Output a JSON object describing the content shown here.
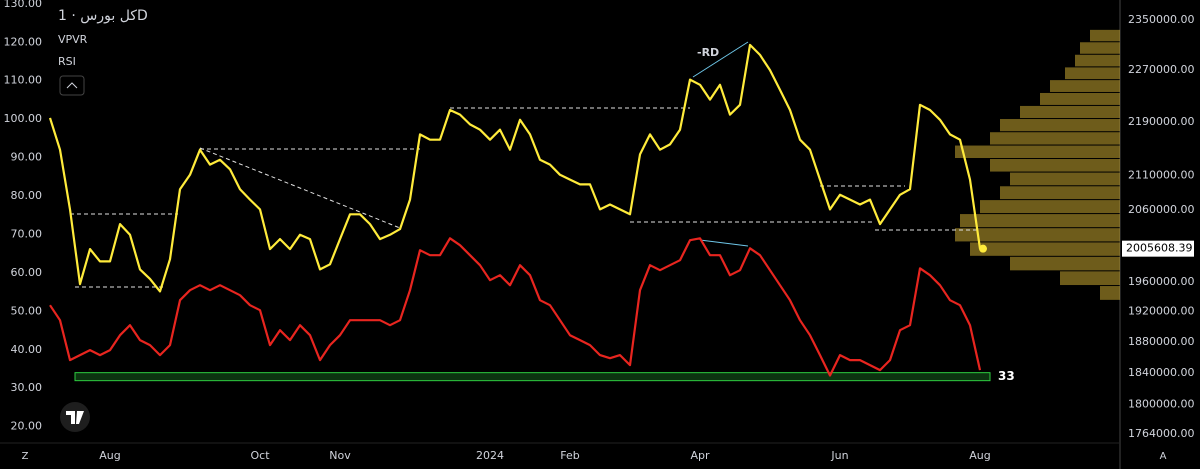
{
  "chart_data": {
    "type": "line",
    "title": "کل بورس · 1D",
    "annotation": "-RD",
    "corner_labels": [
      "Z",
      "A"
    ],
    "categories": [
      null,
      null,
      null,
      null,
      null,
      null,
      "Aug",
      null,
      null,
      null,
      null,
      null,
      null,
      null,
      null,
      null,
      null,
      null,
      null,
      null,
      null,
      "Oct",
      null,
      null,
      null,
      null,
      null,
      null,
      null,
      "Nov",
      null,
      null,
      null,
      null,
      null,
      null,
      null,
      null,
      null,
      null,
      null,
      null,
      null,
      null,
      "2024",
      null,
      null,
      null,
      null,
      null,
      null,
      null,
      "Feb",
      null,
      null,
      null,
      null,
      null,
      null,
      null,
      null,
      null,
      null,
      null,
      null,
      "Apr",
      null,
      null,
      null,
      null,
      null,
      null,
      null,
      null,
      null,
      null,
      null,
      null,
      null,
      "Jun",
      null,
      null,
      null,
      null,
      null,
      null,
      null,
      null,
      null,
      null,
      null,
      null,
      null,
      "Aug"
    ],
    "ylim": [
      16,
      131
    ],
    "yticks": [
      {
        "value": 20,
        "label": "20.00"
      },
      {
        "value": 30,
        "label": "30.00"
      },
      {
        "value": 40,
        "label": "40.00"
      },
      {
        "value": 50,
        "label": "50.00"
      },
      {
        "value": 60,
        "label": "60.00"
      },
      {
        "value": 70,
        "label": "70.00"
      },
      {
        "value": 80,
        "label": "80.00"
      },
      {
        "value": 90,
        "label": "90.00"
      },
      {
        "value": 100,
        "label": "100.00"
      },
      {
        "value": 110,
        "label": "110.00"
      },
      {
        "value": 120,
        "label": "120.00"
      },
      {
        "value": 130,
        "label": "130.00"
      }
    ],
    "y2lim": [
      1754000,
      2383000
    ],
    "y2scale": "log",
    "y2ticks": [
      {
        "value": 1764000,
        "label": "1764000.00"
      },
      {
        "value": 1800000,
        "label": "1800000.00"
      },
      {
        "value": 1840000,
        "label": "1840000.00"
      },
      {
        "value": 1880000,
        "label": "1880000.00"
      },
      {
        "value": 1920000,
        "label": "1920000.00"
      },
      {
        "value": 1960000,
        "label": "1960000.00"
      },
      {
        "value": 2060000,
        "label": "2060000.00"
      },
      {
        "value": 2110000,
        "label": "2110000.00"
      },
      {
        "value": 2190000,
        "label": "2190000.00"
      },
      {
        "value": 2270000,
        "label": "2270000.00"
      },
      {
        "value": 2350000,
        "label": "2350000.00"
      }
    ],
    "grid": false,
    "series": [
      {
        "color": "#ffeb3b",
        "axis": "y2",
        "values": [
          2196000,
          2148000,
          2061000,
          1957000,
          2005000,
          1988000,
          1988000,
          2040000,
          2025000,
          1977000,
          1964000,
          1947000,
          1991000,
          2090000,
          2111000,
          2148000,
          2126000,
          2133000,
          2119000,
          2090000,
          2075000,
          2061000,
          2005000,
          2019000,
          2005000,
          2025000,
          2019000,
          1977000,
          1984000,
          2019000,
          2054000,
          2054000,
          2040000,
          2019000,
          2025000,
          2033000,
          2075000,
          2171000,
          2163000,
          2163000,
          2208000,
          2201000,
          2186000,
          2178000,
          2163000,
          2178000,
          2148000,
          2193000,
          2171000,
          2133000,
          2126000,
          2111000,
          2104000,
          2097000,
          2097000,
          2061000,
          2068000,
          2061000,
          2054000,
          2141000,
          2171000,
          2148000,
          2156000,
          2178000,
          2255000,
          2247000,
          2224000,
          2247000,
          2201000,
          2216000,
          2310000,
          2294000,
          2270000,
          2239000,
          2208000,
          2163000,
          2148000,
          2104000,
          2061000,
          2082000,
          2075000,
          2068000,
          2075000,
          2040000,
          2061000,
          2082000,
          2090000,
          2216000,
          2208000,
          2193000,
          2171000,
          2163000,
          2104000,
          2005608.39
        ]
      },
      {
        "name": "RSI",
        "color": "#e8251f",
        "values": [
          51.6,
          47.7,
          37.3,
          38.6,
          39.9,
          38.6,
          39.9,
          43.8,
          46.4,
          42.5,
          41.2,
          38.6,
          41.2,
          52.9,
          55.5,
          56.8,
          55.5,
          56.8,
          55.5,
          54.2,
          51.6,
          50.3,
          41.2,
          45.1,
          42.5,
          46.4,
          43.8,
          37.3,
          41.2,
          43.8,
          47.7,
          47.7,
          47.7,
          47.7,
          46.4,
          47.7,
          55.5,
          65.9,
          64.6,
          64.6,
          69.0,
          67.2,
          64.6,
          62.0,
          58.1,
          59.4,
          56.8,
          62.0,
          59.4,
          52.9,
          51.6,
          47.7,
          43.8,
          42.5,
          41.2,
          38.6,
          37.8,
          38.6,
          36.0,
          55.5,
          62.0,
          60.7,
          62.0,
          63.3,
          68.5,
          69.0,
          64.6,
          64.6,
          59.4,
          60.7,
          66.4,
          64.6,
          60.7,
          56.8,
          52.9,
          47.7,
          43.8,
          38.6,
          33.3,
          38.6,
          37.3,
          37.3,
          36.0,
          34.7,
          37.3,
          45.1,
          46.4,
          61.2,
          59.4,
          56.8,
          52.9,
          51.6,
          46.4,
          34.7
        ]
      }
    ],
    "support_level": 33,
    "support_color": "#2ecc40",
    "volume_profile": {
      "name": "VPVR",
      "color": "#c8a832",
      "prices": [
        1945000,
        1965000,
        1985000,
        2005000,
        2025000,
        2045000,
        2065000,
        2085000,
        2105000,
        2125000,
        2145000,
        2165000,
        2185000,
        2205000,
        2225000,
        2245000,
        2265000,
        2285000,
        2305000,
        2325000
      ],
      "volumes": [
        20,
        60,
        110,
        150,
        165,
        160,
        140,
        120,
        110,
        130,
        165,
        130,
        120,
        100,
        80,
        70,
        55,
        45,
        40,
        30
      ]
    }
  }
}
